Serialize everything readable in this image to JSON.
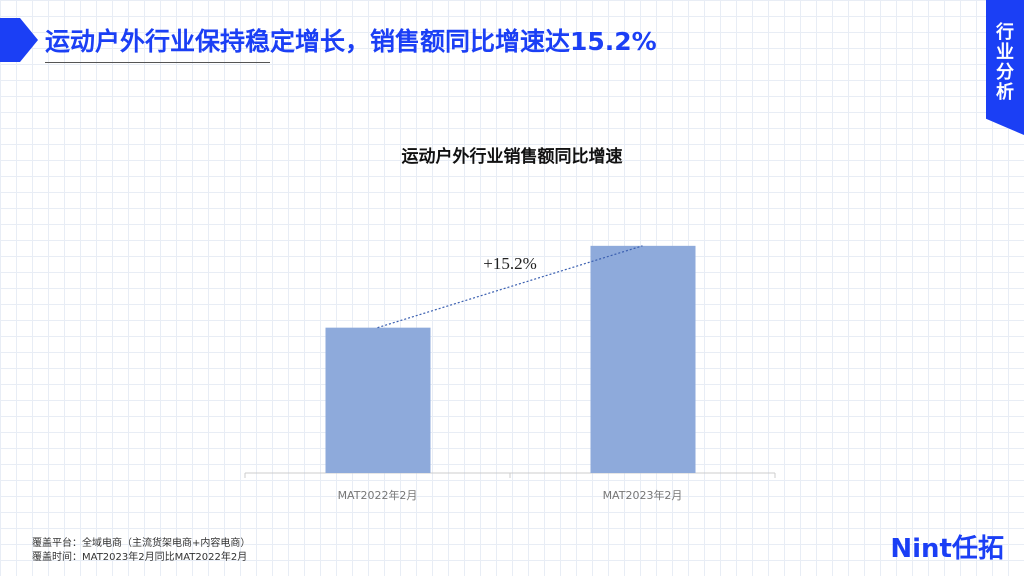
{
  "header": {
    "title": "运动户外行业保持稳定增长，销售额同比增速达15.2%"
  },
  "side_tab": "行业分析",
  "chart_data": {
    "type": "bar",
    "title": "运动户外行业销售额同比增速",
    "categories": [
      "MAT2022年2月",
      "MAT2023年2月"
    ],
    "values": [
      100,
      115.2
    ],
    "color": "#8eaadb",
    "ylim": [
      73,
      120
    ],
    "annotation": "+15.2%"
  },
  "footnotes": [
    "覆盖平台：全域电商（主流货架电商+内容电商）",
    "覆盖时间：MAT2023年2月同比MAT2022年2月"
  ],
  "logo": "Nint任拓"
}
